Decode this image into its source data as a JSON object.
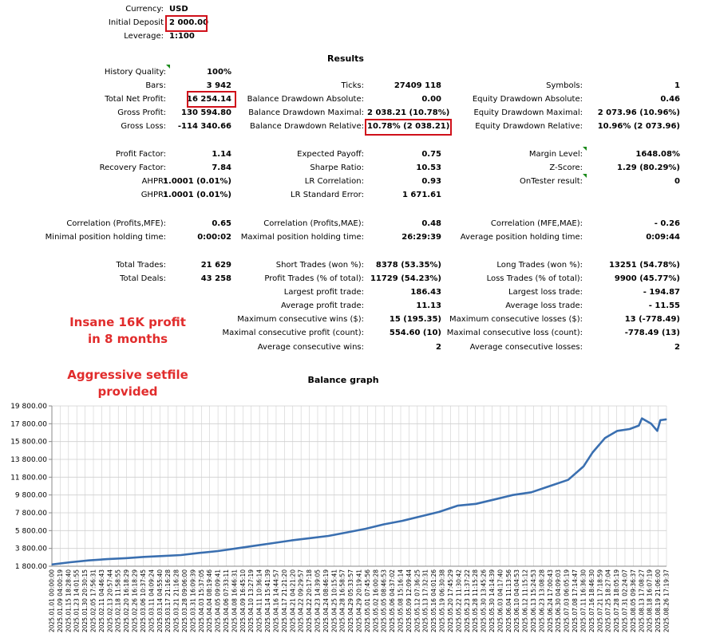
{
  "header": {
    "currency_label": "Currency:",
    "currency_value": "USD",
    "deposit_label": "Initial Deposit",
    "deposit_value": "2 000.00",
    "leverage_label": "Leverage:",
    "leverage_value": "1:100"
  },
  "results_title": "Results",
  "rows": {
    "history_quality": {
      "label": "History Quality:",
      "value": "100%"
    },
    "bars": {
      "label": "Bars:",
      "value": "3 942"
    },
    "total_net_profit": {
      "label": "Total Net Profit:",
      "value": "16 254.14"
    },
    "gross_profit": {
      "label": "Gross Profit:",
      "value": "130 594.80"
    },
    "gross_loss": {
      "label": "Gross Loss:",
      "value": "-114 340.66"
    },
    "ticks": {
      "label": "Ticks:",
      "value": "27409 118"
    },
    "balance_dd_abs": {
      "label": "Balance Drawdown Absolute:",
      "value": "0.00"
    },
    "balance_dd_max": {
      "label": "Balance Drawdown Maximal:",
      "value": "2 038.21 (10.78%)"
    },
    "balance_dd_rel": {
      "label": "Balance Drawdown Relative:",
      "value": "10.78% (2 038.21)"
    },
    "symbols": {
      "label": "Symbols:",
      "value": "1"
    },
    "equity_dd_abs": {
      "label": "Equity Drawdown Absolute:",
      "value": "0.46"
    },
    "equity_dd_max": {
      "label": "Equity Drawdown Maximal:",
      "value": "2 073.96 (10.96%)"
    },
    "equity_dd_rel": {
      "label": "Equity Drawdown Relative:",
      "value": "10.96% (2 073.96)"
    },
    "profit_factor": {
      "label": "Profit Factor:",
      "value": "1.14"
    },
    "recovery_factor": {
      "label": "Recovery Factor:",
      "value": "7.84"
    },
    "ahpr": {
      "label": "AHPR:",
      "value": "1.0001 (0.01%)"
    },
    "ghpr": {
      "label": "GHPR:",
      "value": "1.0001 (0.01%)"
    },
    "expected_payoff": {
      "label": "Expected Payoff:",
      "value": "0.75"
    },
    "sharpe_ratio": {
      "label": "Sharpe Ratio:",
      "value": "10.53"
    },
    "lr_correlation": {
      "label": "LR Correlation:",
      "value": "0.93"
    },
    "lr_std_error": {
      "label": "LR Standard Error:",
      "value": "1 671.61"
    },
    "margin_level": {
      "label": "Margin Level:",
      "value": "1648.08%"
    },
    "z_score": {
      "label": "Z-Score:",
      "value": "1.29 (80.29%)"
    },
    "ontester": {
      "label": "OnTester result:",
      "value": "0"
    },
    "corr_profits_mfe": {
      "label": "Correlation (Profits,MFE):",
      "value": "0.65"
    },
    "corr_profits_mae": {
      "label": "Correlation (Profits,MAE):",
      "value": "0.48"
    },
    "corr_mfe_mae": {
      "label": "Correlation (MFE,MAE):",
      "value": "- 0.26"
    },
    "min_hold": {
      "label": "Minimal position holding time:",
      "value": "0:00:02"
    },
    "max_hold": {
      "label": "Maximal position holding time:",
      "value": "26:29:39"
    },
    "avg_hold": {
      "label": "Average position holding time:",
      "value": "0:09:44"
    },
    "total_trades": {
      "label": "Total Trades:",
      "value": "21 629"
    },
    "total_deals": {
      "label": "Total Deals:",
      "value": "43 258"
    },
    "short_trades": {
      "label": "Short Trades (won %):",
      "value": "8378 (53.35%)"
    },
    "profit_trades": {
      "label": "Profit Trades (% of total):",
      "value": "11729 (54.23%)"
    },
    "largest_profit": {
      "label": "Largest profit trade:",
      "value": "186.43"
    },
    "average_profit": {
      "label": "Average profit trade:",
      "value": "11.13"
    },
    "max_consec_wins": {
      "label": "Maximum consecutive wins ($):",
      "value": "15 (195.35)"
    },
    "maximal_consec_profit": {
      "label": "Maximal consecutive profit (count):",
      "value": "554.60 (10)"
    },
    "avg_consec_wins": {
      "label": "Average consecutive wins:",
      "value": "2"
    },
    "long_trades": {
      "label": "Long Trades (won %):",
      "value": "13251 (54.78%)"
    },
    "loss_trades": {
      "label": "Loss Trades (% of total):",
      "value": "9900 (45.77%)"
    },
    "largest_loss": {
      "label": "Largest loss trade:",
      "value": "- 194.87"
    },
    "average_loss": {
      "label": "Average loss trade:",
      "value": "- 11.55"
    },
    "max_consec_losses": {
      "label": "Maximum consecutive losses ($):",
      "value": "13 (-778.49)"
    },
    "maximal_consec_loss": {
      "label": "Maximal consecutive loss (count):",
      "value": "-778.49 (13)"
    },
    "avg_consec_losses": {
      "label": "Average consecutive losses:",
      "value": "2"
    }
  },
  "promo": {
    "line1": "Insane 16K profit",
    "line2": "in 8 months",
    "line3": "Aggressive setfile",
    "line4": "provided"
  },
  "colors": {
    "highlight": "#d0101a",
    "promo": "#e12c2c",
    "line": "#3a6fb0",
    "grid": "#cfcfcf"
  },
  "chart_data": {
    "type": "line",
    "title": "Balance graph",
    "ylim": [
      1800,
      19800
    ],
    "grid": true,
    "y_ticks": [
      "19 800.00",
      "17 800.00",
      "15 800.00",
      "13 800.00",
      "11 800.00",
      "9 800.00",
      "7 800.00",
      "5 800.00",
      "3 800.00",
      "1 800.00"
    ],
    "x_ticks": [
      "2025.01.01 00:00:00",
      "2025.01.09 04:00:19",
      "2025.01.15 18:28:40",
      "2025.01.23 14:01:55",
      "2025.01.30 20:30:15",
      "2025.02.05 17:56:31",
      "2025.02.11 04:46:43",
      "2025.02.13 20:57:44",
      "2025.02.18 11:58:55",
      "2025.02.20 16:18:29",
      "2025.02.26 16:18:29",
      "2025.03.06 10:37:45",
      "2025.03.11 04:09:24",
      "2025.03.14 04:55:40",
      "2025.03.17 21:16:28",
      "2025.03.21 21:16:28",
      "2025.03.28 09:06:00",
      "2025.03.31 16:09:39",
      "2025.04.03 15:37:05",
      "2025.04.04 08:19:46",
      "2025.04.05 09:09:41",
      "2025.04.06 07:33:11",
      "2025.04.08 16:46:31",
      "2025.04.09 16:45:10",
      "2025.04.10 13:27:19",
      "2025.04.11 10:36:14",
      "2025.04.14 15:41:39",
      "2025.04.16 14:44:57",
      "2025.04.17 21:21:20",
      "2025.04.21 04:21:20",
      "2025.04.22 09:29:57",
      "2025.04.22 20:17:18",
      "2025.04.23 14:39:05",
      "2025.04.24 08:46:19",
      "2025.04.25 10:15:41",
      "2025.04.28 16:58:57",
      "2025.04.29 05:33:57",
      "2025.04.29 20:19:41",
      "2025.05.01 07:45:56",
      "2025.05.02 16:00:28",
      "2025.05.05 08:46:53",
      "2025.05.06 04:37:02",
      "2025.05.08 15:16:14",
      "2025.05.09 12:09:44",
      "2025.05.12 07:36:25",
      "2025.05.13 17:32:31",
      "2025.05.16 04:01:26",
      "2025.05.19 06:30:38",
      "2025.05.20 17:45:29",
      "2025.05.22 11:30:42",
      "2025.05.23 11:37:22",
      "2025.05.28 11:15:28",
      "2025.05.30 13:45:26",
      "2025.05.30 14:14:39",
      "2025.06.03 04:17:40",
      "2025.06.04 11:13:56",
      "2025.06.10 04:04:53",
      "2025.06.12 11:15:12",
      "2025.06.13 15:24:53",
      "2025.06.23 13:08:28",
      "2025.06.24 17:00:43",
      "2025.06.30 04:09:03",
      "2025.07.03 06:05:19",
      "2025.07.08 17:14:47",
      "2025.07.11 16:36:30",
      "2025.07.16 18:46:30",
      "2025.07.21 17:18:59",
      "2025.07.25 18:27:04",
      "2025.07.28 18:05:19",
      "2025.07.31 02:24:07",
      "2025.08.05 09:36:37",
      "2025.08.13 17:08:27",
      "2025.08.18 16:07:19",
      "2025.08.19 21:06:00",
      "2025.08.26 17:19:37"
    ],
    "series": [
      {
        "x_fraction": [
          0,
          0.03,
          0.06,
          0.09,
          0.12,
          0.15,
          0.18,
          0.21,
          0.24,
          0.27,
          0.3,
          0.33,
          0.36,
          0.39,
          0.42,
          0.45,
          0.48,
          0.51,
          0.54,
          0.57,
          0.6,
          0.63,
          0.66,
          0.69,
          0.72,
          0.75,
          0.78,
          0.81,
          0.84,
          0.865,
          0.88,
          0.9,
          0.92,
          0.94,
          0.955,
          0.96,
          0.975,
          0.985,
          0.99,
          1.0
        ],
        "values": [
          2000,
          2250,
          2450,
          2600,
          2700,
          2850,
          2950,
          3050,
          3300,
          3500,
          3800,
          4100,
          4400,
          4700,
          4950,
          5200,
          5600,
          6000,
          6500,
          6900,
          7400,
          7900,
          8600,
          8800,
          9300,
          9800,
          10100,
          10800,
          11500,
          13000,
          14600,
          16200,
          17000,
          17200,
          17600,
          18400,
          17800,
          17000,
          18200,
          18300
        ]
      }
    ]
  }
}
